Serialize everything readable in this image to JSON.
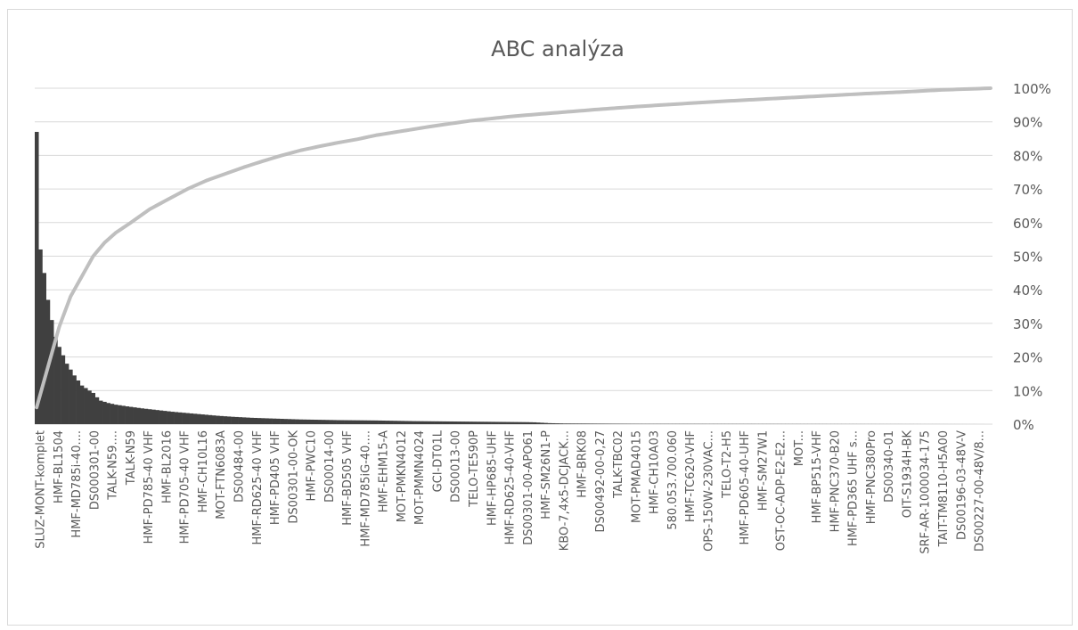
{
  "chart_data": {
    "type": "bar+line",
    "title": "ABC analýza",
    "y2_ticks": [
      "0%",
      "10%",
      "20%",
      "30%",
      "40%",
      "50%",
      "60%",
      "70%",
      "80%",
      "90%",
      "100%"
    ],
    "ylim_percent": [
      0,
      100
    ],
    "grid": true,
    "x_tick_labels": [
      "SLUZ-MONT-komplet",
      "HMF-BL1504",
      "HMF-MD785i-40....",
      "DS000301-00",
      "TALK-N59....",
      "TALK-N59",
      "HMF-PD785-40 VHF",
      "HMF-BL2016",
      "HMF-PD705-40 VHF",
      "HMF-CH10L16",
      "MOT-FTN6083A",
      "DS00484-00",
      "HMF-RD625-40 VHF",
      "HMF-PD405 VHF",
      "DS00301-00-OK",
      "HMF-PWC10",
      "DS00014-00",
      "HMF-BD505 VHF",
      "HMF-MD785iG-40....",
      "HMF-EHM15-A",
      "MOT-PMKN4012",
      "MOT-PMMN4024",
      "GCI-DT01L",
      "DS00013-00",
      "TELO-TE590P",
      "HMF-HP685-UHF",
      "HMF-RD625-40-VHF",
      "DS00301-00-APO61",
      "HMF-SM26N1-P",
      "KBO-7,4x5-DCJACK...",
      "HMF-BRK08",
      "DS00492-00-0,27",
      "TALK-TBC02",
      "MOT-PMAD4015",
      "HMF-CH10A03",
      "580.053.700.060",
      "HMF-TC620-VHF",
      "OPS-150W-230VAC...",
      "TELO-T2-H5",
      "HMF-PD605-40-UHF",
      "HMF-SM27W1",
      "OST-OC-ADP-E2-E2...",
      "MOT...",
      "HMF-BP515-VHF",
      "HMF-PNC370-B20",
      "HMF-PD365 UHF s...",
      "HMF-PNC380Pro",
      "DS00340-01",
      "OIT-S1934H-BK",
      "SRF-AR-1000034-175",
      "TAIT-TM8110-H5A00",
      "DS00196-03-48V-V",
      "DS00227-00-48V/8..."
    ],
    "bar_profile_percent": [
      [
        0,
        87
      ],
      [
        0.5,
        62
      ],
      [
        1,
        52
      ],
      [
        2,
        45
      ],
      [
        3,
        37
      ],
      [
        4,
        31
      ],
      [
        5,
        26
      ],
      [
        6,
        23
      ],
      [
        7,
        20.5
      ],
      [
        8,
        18
      ],
      [
        10,
        14.5
      ],
      [
        12,
        11.5
      ],
      [
        14,
        10
      ],
      [
        15,
        9.3
      ],
      [
        16,
        8
      ],
      [
        17,
        7
      ],
      [
        19,
        6.3
      ],
      [
        21,
        5.8
      ],
      [
        24,
        5.3
      ],
      [
        28,
        4.7
      ],
      [
        32,
        4.2
      ],
      [
        36,
        3.7
      ],
      [
        40,
        3.3
      ],
      [
        44,
        2.9
      ],
      [
        48,
        2.5
      ],
      [
        52,
        2.2
      ],
      [
        57,
        1.9
      ],
      [
        62,
        1.7
      ],
      [
        70,
        1.4
      ],
      [
        80,
        1.2
      ],
      [
        90,
        1.1
      ],
      [
        100,
        0.9
      ],
      [
        110,
        0.8
      ],
      [
        120,
        0.7
      ],
      [
        130,
        0.6
      ],
      [
        132,
        0.55
      ],
      [
        136,
        0.3
      ],
      [
        140,
        0.2
      ],
      [
        160,
        0.1
      ],
      [
        253,
        0
      ]
    ],
    "cumulative_profile_percent": [
      [
        0,
        5
      ],
      [
        3,
        17
      ],
      [
        6,
        29
      ],
      [
        9,
        38
      ],
      [
        12,
        44
      ],
      [
        15,
        50
      ],
      [
        18,
        54
      ],
      [
        21,
        57
      ],
      [
        25,
        60
      ],
      [
        30,
        64
      ],
      [
        35,
        67
      ],
      [
        40,
        70
      ],
      [
        45,
        72.5
      ],
      [
        50,
        74.5
      ],
      [
        55,
        76.5
      ],
      [
        60,
        78.3
      ],
      [
        65,
        80
      ],
      [
        70,
        81.5
      ],
      [
        75,
        82.7
      ],
      [
        80,
        83.8
      ],
      [
        85,
        84.8
      ],
      [
        90,
        86
      ],
      [
        95,
        86.9
      ],
      [
        100,
        87.8
      ],
      [
        105,
        88.7
      ],
      [
        110,
        89.5
      ],
      [
        115,
        90.3
      ],
      [
        120,
        90.9
      ],
      [
        125,
        91.5
      ],
      [
        130,
        92
      ],
      [
        140,
        92.9
      ],
      [
        150,
        93.8
      ],
      [
        160,
        94.6
      ],
      [
        170,
        95.3
      ],
      [
        180,
        96
      ],
      [
        190,
        96.6
      ],
      [
        200,
        97.2
      ],
      [
        210,
        97.8
      ],
      [
        220,
        98.4
      ],
      [
        230,
        98.9
      ],
      [
        240,
        99.5
      ],
      [
        253,
        100
      ]
    ],
    "bar_color": "#404040",
    "line_color": "#bfbfbf",
    "grid_color": "#d9d9d9"
  }
}
